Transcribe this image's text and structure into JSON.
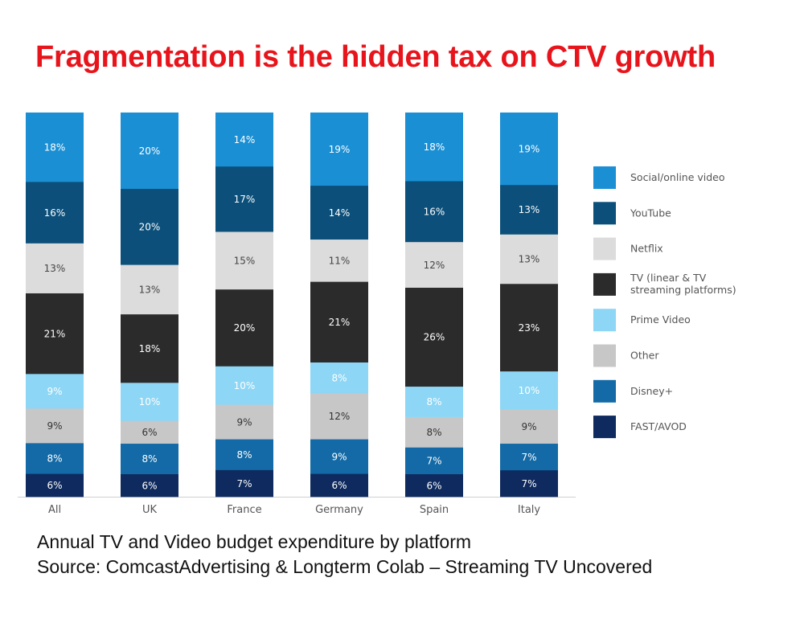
{
  "title": "Fragmentation is the hidden tax on CTV growth",
  "caption": {
    "line1": "Annual TV and Video budget expenditure by platform",
    "line2": "Source: ComcastAdvertising & Longterm Colab – Streaming TV Uncovered"
  },
  "chart_data": {
    "type": "bar",
    "stacked": true,
    "categories": [
      "All",
      "UK",
      "France",
      "Germany",
      "Spain",
      "Italy"
    ],
    "series": [
      {
        "name": "FAST/AVOD",
        "color": "#0e2a5e",
        "label_color": "#ffffff",
        "values": [
          6,
          6,
          7,
          6,
          6,
          7
        ]
      },
      {
        "name": "Disney+",
        "color": "#136aa6",
        "label_color": "#ffffff",
        "values": [
          8,
          8,
          8,
          9,
          7,
          7
        ]
      },
      {
        "name": "Other",
        "color": "#c7c7c7",
        "label_color": "#333333",
        "values": [
          9,
          6,
          9,
          12,
          8,
          9
        ]
      },
      {
        "name": "Prime Video",
        "color": "#8dd6f5",
        "label_color": "#ffffff",
        "values": [
          9,
          10,
          10,
          8,
          8,
          10
        ]
      },
      {
        "name": "TV (linear & TV streaming platforms)",
        "color": "#2b2b2b",
        "label_color": "#ffffff",
        "values": [
          21,
          18,
          20,
          21,
          26,
          23
        ]
      },
      {
        "name": "Netflix",
        "color": "#dcdcdc",
        "label_color": "#444444",
        "values": [
          13,
          13,
          15,
          11,
          12,
          13
        ]
      },
      {
        "name": "YouTube",
        "color": "#0b4f7a",
        "label_color": "#ffffff",
        "values": [
          16,
          20,
          17,
          14,
          16,
          13
        ]
      },
      {
        "name": "Social/online video",
        "color": "#1a8fd4",
        "label_color": "#ffffff",
        "values": [
          18,
          20,
          14,
          19,
          18,
          19
        ]
      }
    ],
    "data_labels": "percent",
    "legend": {
      "position": "right",
      "entries": [
        {
          "label": "Social/online video",
          "color": "#1a8fd4"
        },
        {
          "label": "YouTube",
          "color": "#0b4f7a"
        },
        {
          "label": "Netflix",
          "color": "#dcdcdc"
        },
        {
          "label": "TV (linear & TV streaming platforms)",
          "lines": [
            "TV (linear & TV",
            "streaming platforms)"
          ],
          "color": "#2b2b2b"
        },
        {
          "label": "Prime Video",
          "color": "#8dd6f5"
        },
        {
          "label": "Other",
          "color": "#c7c7c7"
        },
        {
          "label": "Disney+",
          "color": "#136aa6"
        },
        {
          "label": "FAST/AVOD",
          "color": "#0e2a5e"
        }
      ]
    },
    "ylim": [
      0,
      100
    ],
    "xlabel": "",
    "ylabel": ""
  }
}
